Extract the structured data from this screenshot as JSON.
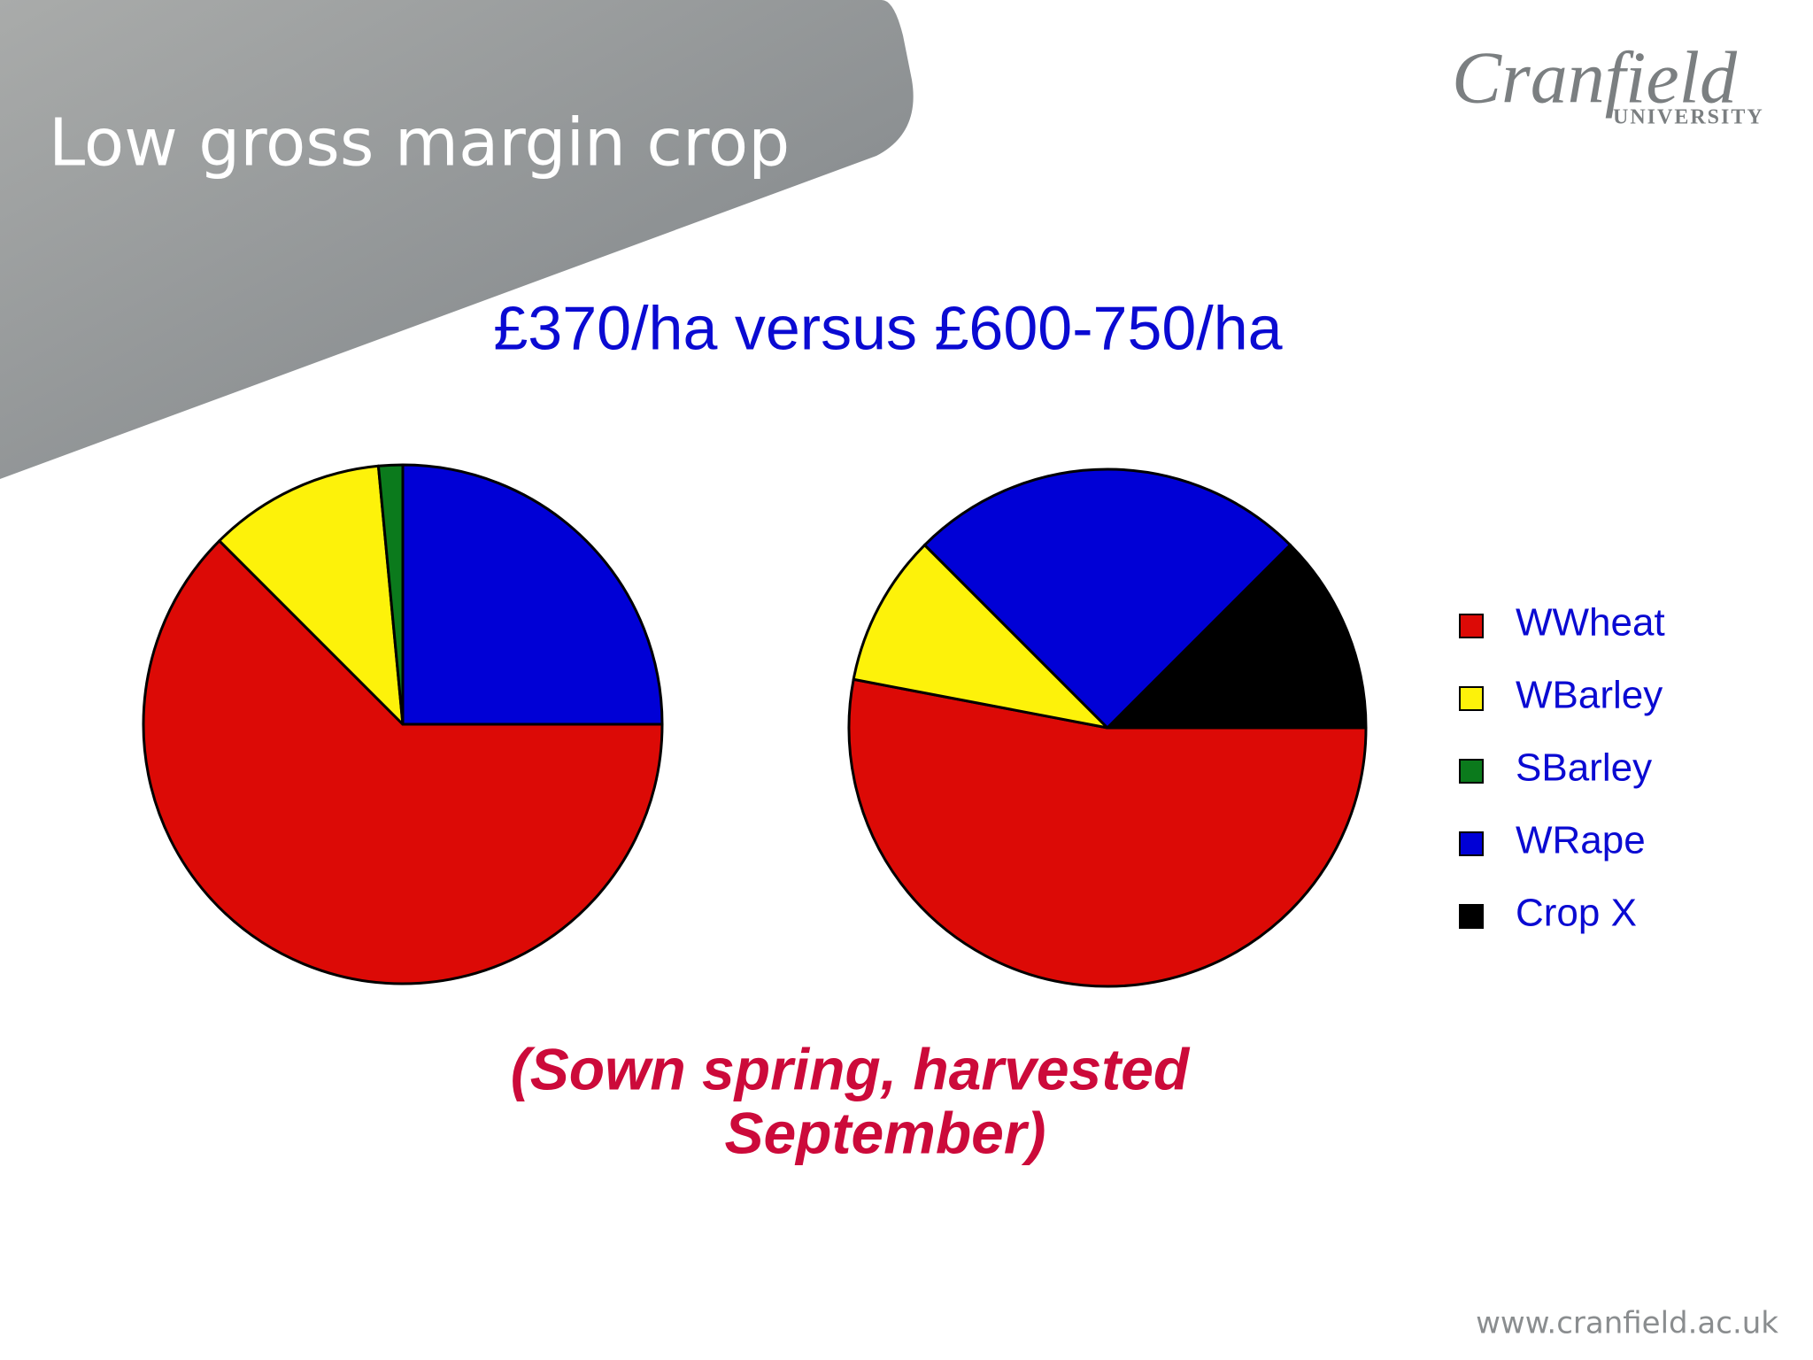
{
  "header": {
    "title": "Low gross margin crop",
    "logo": "Cranfield",
    "logo_sub": "UNIVERSITY"
  },
  "subtitle": "£370/ha versus £600-750/ha",
  "chart_data": [
    {
      "type": "pie",
      "categories": [
        "WWheat",
        "WBarley",
        "SBarley",
        "WRape",
        "Crop X"
      ],
      "values": [
        62.5,
        11,
        1.5,
        25,
        0
      ],
      "colors": [
        "#dc0a06",
        "#fdf20a",
        "#0b7a1c",
        "#0000d6",
        "#000000"
      ],
      "legend": "right"
    },
    {
      "type": "pie",
      "categories": [
        "WWheat",
        "WBarley",
        "SBarley",
        "WRape",
        "Crop X"
      ],
      "values": [
        53,
        9.5,
        0,
        25,
        12.5
      ],
      "colors": [
        "#dc0a06",
        "#fdf20a",
        "#0b7a1c",
        "#0000d6",
        "#000000"
      ]
    }
  ],
  "caption": [
    "(Sown spring, harvested",
    "September)"
  ],
  "footer": "www.cranfield.ac.uk"
}
